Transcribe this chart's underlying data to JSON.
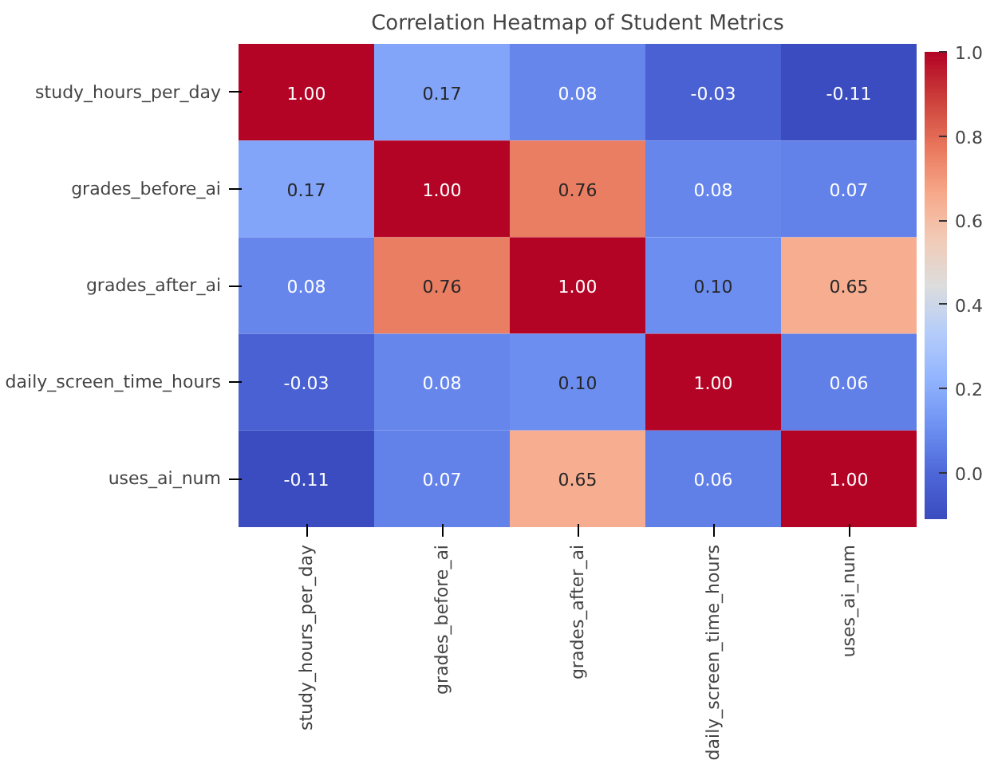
{
  "chart_data": {
    "type": "heatmap",
    "title": "Correlation Heatmap of Student Metrics",
    "categories": [
      "study_hours_per_day",
      "grades_before_ai",
      "grades_after_ai",
      "daily_screen_time_hours",
      "uses_ai_num"
    ],
    "y_categories": [
      "study_hours_per_day",
      "grades_before_ai",
      "grades_after_ai",
      "daily_screen_time_hours",
      "uses_ai_num"
    ],
    "cells": [
      [
        1.0,
        0.17,
        0.08,
        -0.03,
        -0.11
      ],
      [
        0.17,
        1.0,
        0.76,
        0.08,
        0.07
      ],
      [
        0.08,
        0.76,
        1.0,
        0.1,
        0.65
      ],
      [
        -0.03,
        0.08,
        0.1,
        1.0,
        0.06
      ],
      [
        -0.11,
        0.07,
        0.65,
        0.06,
        1.0
      ]
    ],
    "cell_labels": [
      [
        "1.00",
        "0.17",
        "0.08",
        "-0.03",
        "-0.11"
      ],
      [
        "0.17",
        "1.00",
        "0.76",
        "0.08",
        "0.07"
      ],
      [
        "0.08",
        "0.76",
        "1.00",
        "0.10",
        "0.65"
      ],
      [
        "-0.03",
        "0.08",
        "0.10",
        "1.00",
        "0.06"
      ],
      [
        "-0.11",
        "0.07",
        "0.65",
        "0.06",
        "1.00"
      ]
    ],
    "clim": [
      -0.11,
      1.0
    ],
    "cticks": [
      {
        "value": 0,
        "label": "0.0"
      },
      {
        "value": 0.2,
        "label": "0.2"
      },
      {
        "value": 0.4,
        "label": "0.4"
      },
      {
        "value": 0.6,
        "label": "0.6"
      },
      {
        "value": 0.8,
        "label": "0.8"
      },
      {
        "value": 1.0,
        "label": "1.0"
      }
    ]
  }
}
